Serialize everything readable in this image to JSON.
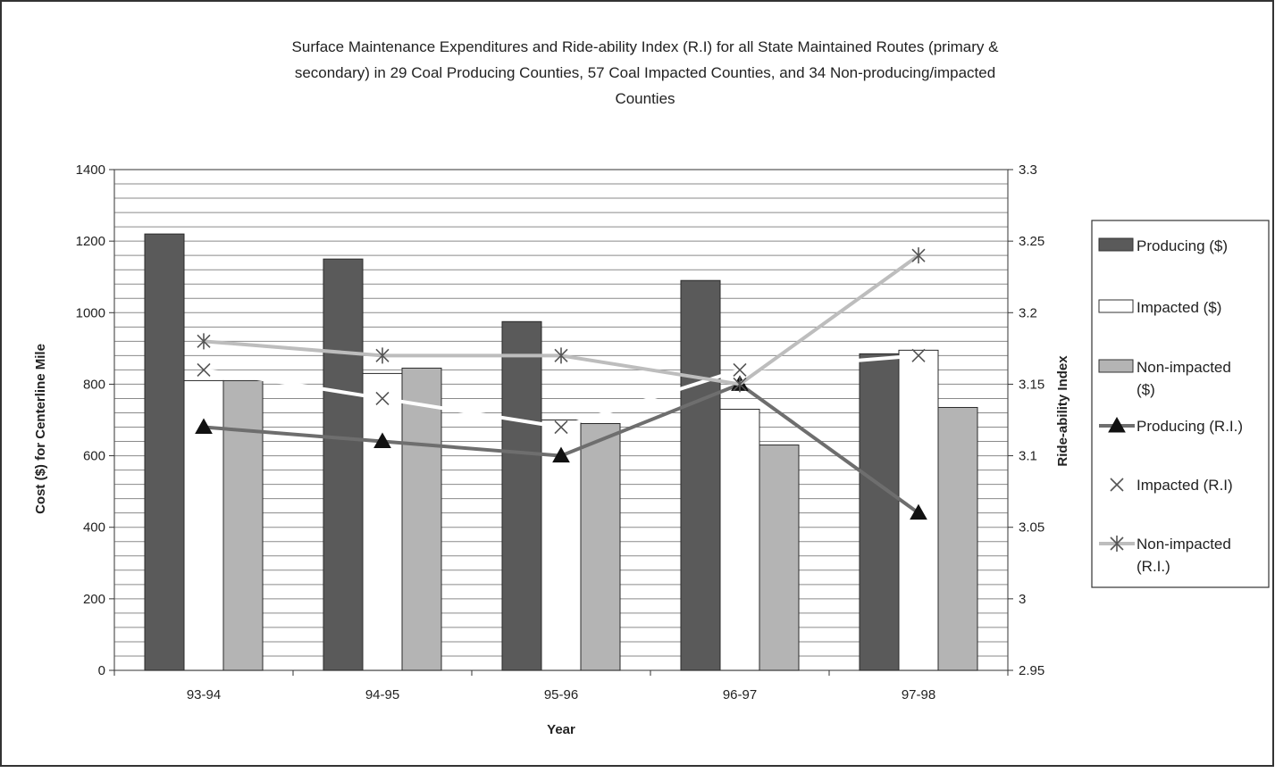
{
  "chart_data": {
    "type": "bar",
    "title_lines": [
      "Surface Maintenance Expenditures and Ride-ability Index (R.I) for all State Maintained Routes (primary &",
      "secondary) in 29 Coal Producing Counties, 57 Coal Impacted Counties, and 34 Non-producing/impacted",
      "Counties"
    ],
    "xlabel": "Year",
    "ylabel": "Cost ($) for Centerline Mile",
    "y2label": "Ride-ability Index",
    "categories": [
      "93-94",
      "94-95",
      "95-96",
      "96-97",
      "97-98"
    ],
    "ylim": [
      0,
      1400
    ],
    "y_ticks": [
      "0",
      "200",
      "400",
      "600",
      "800",
      "1000",
      "1200",
      "1400"
    ],
    "y2lim": [
      2.95,
      3.3
    ],
    "y2_ticks": [
      "2.95",
      "3",
      "3.05",
      "3.1",
      "3.15",
      "3.2",
      "3.25",
      "3.3"
    ],
    "grid": true,
    "legend_position": "right",
    "bar_series": [
      {
        "name": "Producing ($)",
        "color": "#5a5a5a",
        "values": [
          1220,
          1150,
          975,
          1090,
          885
        ]
      },
      {
        "name": "Impacted ($)",
        "color": "#ffffff",
        "values": [
          810,
          830,
          700,
          730,
          895
        ]
      },
      {
        "name": "Non-impacted ($)",
        "color": "#b4b4b4",
        "values": [
          810,
          845,
          690,
          630,
          735
        ]
      }
    ],
    "line_series": [
      {
        "name": "Producing (R.I.)",
        "color": "#6e6e6e",
        "marker": "triangle",
        "values": [
          3.12,
          3.11,
          3.1,
          3.15,
          3.06
        ]
      },
      {
        "name": "Impacted (R.I)",
        "color": "#ffffff",
        "marker": "x",
        "values": [
          3.16,
          3.14,
          3.12,
          3.16,
          3.17
        ]
      },
      {
        "name": "Non-impacted (R.I.)",
        "color": "#bdbdbd",
        "marker": "asterisk",
        "values": [
          3.18,
          3.17,
          3.17,
          3.15,
          3.24
        ]
      }
    ],
    "legend": [
      {
        "kind": "bar",
        "series": 0,
        "lines": [
          "Producing ($)"
        ]
      },
      {
        "kind": "bar",
        "series": 1,
        "lines": [
          "Impacted ($)"
        ]
      },
      {
        "kind": "bar",
        "series": 2,
        "lines": [
          "Non-impacted",
          "($)"
        ]
      },
      {
        "kind": "line",
        "series": 0,
        "lines": [
          "Producing (R.I.)"
        ]
      },
      {
        "kind": "line",
        "series": 1,
        "lines": [
          "Impacted (R.I)"
        ]
      },
      {
        "kind": "line",
        "series": 2,
        "lines": [
          "Non-impacted",
          "(R.I.)"
        ]
      }
    ]
  }
}
